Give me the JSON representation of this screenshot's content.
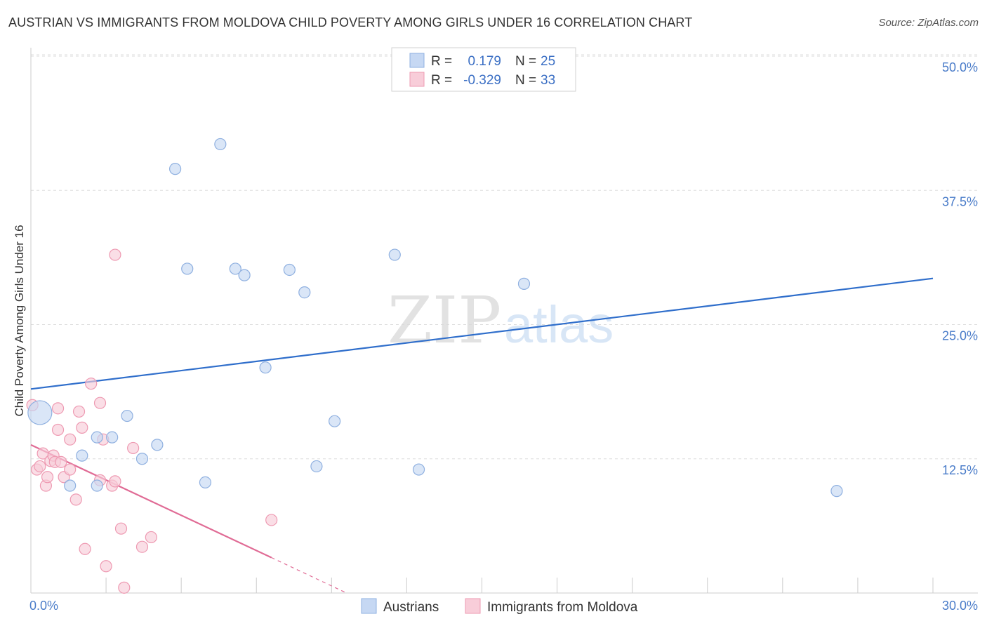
{
  "title": "AUSTRIAN VS IMMIGRANTS FROM MOLDOVA CHILD POVERTY AMONG GIRLS UNDER 16 CORRELATION CHART",
  "source": "Source: ZipAtlas.com",
  "watermark": {
    "zip": "ZIP",
    "atlas": "atlas"
  },
  "colors": {
    "blue_fill": "#c6d8f3",
    "blue_stroke": "#8fb0e0",
    "blue_line": "#2f6ecb",
    "pink_fill": "#f8cdd9",
    "pink_stroke": "#ee9ab2",
    "pink_line": "#e06b95",
    "tick_label": "#4a7cc9",
    "grid": "#dddddd"
  },
  "legend": {
    "rows": [
      {
        "r_label": "R =",
        "r_value": "0.179",
        "n_label": "N =",
        "n_value": "25",
        "series": "blue"
      },
      {
        "r_label": "R =",
        "r_value": "-0.329",
        "n_label": "N =",
        "n_value": "33",
        "series": "pink"
      }
    ]
  },
  "chart_data": {
    "type": "scatter",
    "title": "AUSTRIAN VS IMMIGRANTS FROM MOLDOVA CHILD POVERTY AMONG GIRLS UNDER 16 CORRELATION CHART",
    "xlabel": "",
    "ylabel": "Child Poverty Among Girls Under 16",
    "xlim": [
      0,
      30
    ],
    "ylim": [
      0,
      50
    ],
    "x_tick_labels": [
      "0.0%",
      "30.0%"
    ],
    "y_ticks": [
      12.5,
      25.0,
      37.5,
      50.0
    ],
    "y_tick_labels": [
      "12.5%",
      "25.0%",
      "37.5%",
      "50.0%"
    ],
    "grid": true,
    "legend_position": "bottom",
    "series": [
      {
        "name": "Austrians",
        "color": "#c6d8f3",
        "trend": {
          "x": [
            0,
            30
          ],
          "y": [
            19.0,
            29.3
          ]
        },
        "points": [
          {
            "x": 0.3,
            "y": 16.8,
            "big": true
          },
          {
            "x": 1.3,
            "y": 10.0
          },
          {
            "x": 1.7,
            "y": 12.8
          },
          {
            "x": 2.2,
            "y": 10.0
          },
          {
            "x": 2.2,
            "y": 14.5
          },
          {
            "x": 2.7,
            "y": 14.5
          },
          {
            "x": 3.2,
            "y": 16.5
          },
          {
            "x": 3.7,
            "y": 12.5
          },
          {
            "x": 4.2,
            "y": 13.8
          },
          {
            "x": 4.8,
            "y": 39.5
          },
          {
            "x": 5.2,
            "y": 30.2
          },
          {
            "x": 5.8,
            "y": 10.3
          },
          {
            "x": 6.3,
            "y": 41.8
          },
          {
            "x": 6.8,
            "y": 30.2
          },
          {
            "x": 7.1,
            "y": 29.6
          },
          {
            "x": 7.8,
            "y": 21.0
          },
          {
            "x": 8.6,
            "y": 30.1
          },
          {
            "x": 9.1,
            "y": 28.0
          },
          {
            "x": 9.5,
            "y": 11.8
          },
          {
            "x": 10.1,
            "y": 16.0
          },
          {
            "x": 12.1,
            "y": 31.5
          },
          {
            "x": 12.9,
            "y": 11.5
          },
          {
            "x": 13.5,
            "y": 49.9
          },
          {
            "x": 16.4,
            "y": 28.8
          },
          {
            "x": 26.8,
            "y": 9.5
          }
        ]
      },
      {
        "name": "Immigrants from Moldova",
        "color": "#f8cdd9",
        "trend": {
          "x": [
            0,
            8.0
          ],
          "y": [
            13.8,
            3.3
          ]
        },
        "trend_dashed": {
          "x": [
            8.0,
            10.5
          ],
          "y": [
            3.3,
            0.0
          ]
        },
        "points": [
          {
            "x": 0.05,
            "y": 17.5
          },
          {
            "x": 0.2,
            "y": 11.5
          },
          {
            "x": 0.3,
            "y": 11.8
          },
          {
            "x": 0.4,
            "y": 13.0
          },
          {
            "x": 0.5,
            "y": 10.0
          },
          {
            "x": 0.55,
            "y": 10.8
          },
          {
            "x": 0.65,
            "y": 12.3
          },
          {
            "x": 0.75,
            "y": 12.8
          },
          {
            "x": 0.8,
            "y": 12.2
          },
          {
            "x": 0.9,
            "y": 15.2
          },
          {
            "x": 0.9,
            "y": 17.2
          },
          {
            "x": 1.0,
            "y": 12.2
          },
          {
            "x": 1.1,
            "y": 10.8
          },
          {
            "x": 1.3,
            "y": 11.5
          },
          {
            "x": 1.3,
            "y": 14.3
          },
          {
            "x": 1.5,
            "y": 8.7
          },
          {
            "x": 1.6,
            "y": 16.9
          },
          {
            "x": 1.7,
            "y": 15.4
          },
          {
            "x": 1.8,
            "y": 4.1
          },
          {
            "x": 2.0,
            "y": 19.5
          },
          {
            "x": 2.3,
            "y": 10.5
          },
          {
            "x": 2.3,
            "y": 17.7
          },
          {
            "x": 2.4,
            "y": 14.3
          },
          {
            "x": 2.5,
            "y": 2.5
          },
          {
            "x": 2.7,
            "y": 10.0
          },
          {
            "x": 2.8,
            "y": 10.4
          },
          {
            "x": 2.8,
            "y": 31.5
          },
          {
            "x": 3.0,
            "y": 6.0
          },
          {
            "x": 3.1,
            "y": 0.5
          },
          {
            "x": 3.4,
            "y": 13.5
          },
          {
            "x": 3.7,
            "y": 4.3
          },
          {
            "x": 4.0,
            "y": 5.2
          },
          {
            "x": 8.0,
            "y": 6.8
          }
        ]
      }
    ]
  }
}
